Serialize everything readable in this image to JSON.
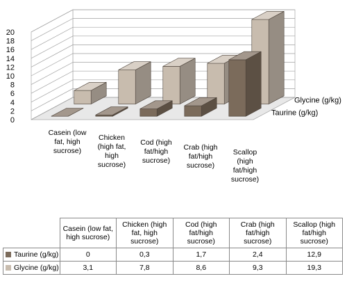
{
  "chart_data": {
    "type": "bar",
    "categories": [
      "Casein (low fat, high sucrose)",
      "Chicken (high fat, high sucrose)",
      "Cod (high fat/high sucrose)",
      "Crab (high fat/high sucrose)",
      "Scallop (high fat/high sucrose)"
    ],
    "series": [
      {
        "name": "Taurine (g/kg)",
        "values": [
          0,
          0.3,
          1.7,
          2.4,
          12.9
        ],
        "labels": [
          "0",
          "0,3",
          "1,7",
          "2,4",
          "12,9"
        ],
        "color": "#7b6b5b"
      },
      {
        "name": "Glycine (g/kg)",
        "values": [
          3.1,
          7.8,
          8.6,
          9.3,
          19.3
        ],
        "labels": [
          "3,1",
          "7,8",
          "8,6",
          "9,3",
          "19,3"
        ],
        "color": "#c8bcae"
      }
    ],
    "ylim": [
      0,
      20
    ],
    "yticks": [
      0,
      2,
      4,
      6,
      8,
      10,
      12,
      14,
      16,
      18,
      20
    ],
    "grid": true,
    "style": "3d-column",
    "data_table": true
  },
  "table": {
    "headers": [
      "Casein (low fat, high sucrose)",
      "Chicken (high fat, high sucrose)",
      "Cod (high fat/high sucrose)",
      "Crab (high fat/high sucrose)",
      "Scallop (high fat/high sucrose)"
    ]
  }
}
